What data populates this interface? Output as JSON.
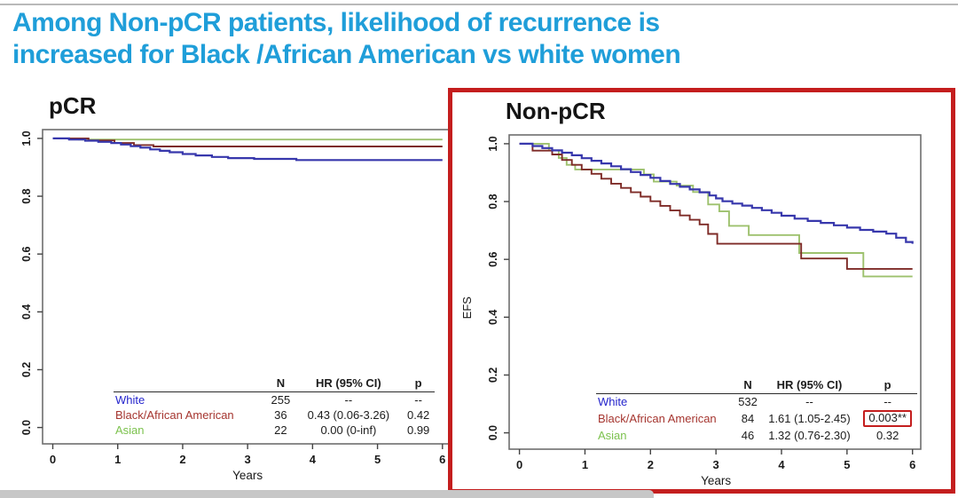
{
  "slide": {
    "title_line1": "Among Non-pCR patients, likelihood of recurrence is",
    "title_line2": "increased for Black /African American vs white women",
    "title_color": "#1f9ed9",
    "highlight_border_color": "#c41e1e"
  },
  "chart_data": [
    {
      "type": "line",
      "variant": "kaplan-meier-step",
      "title": "pCR",
      "xlabel": "Years",
      "ylabel": "",
      "xlim": [
        0,
        6
      ],
      "ylim": [
        0.0,
        1.0
      ],
      "xticks": [
        "0",
        "1",
        "2",
        "3",
        "4",
        "5",
        "6"
      ],
      "yticks": [
        "0.0",
        "0.2",
        "0.4",
        "0.6",
        "0.8",
        "1.0"
      ],
      "grid": false,
      "highlighted": false,
      "series": [
        {
          "name": "Asian",
          "color": "#9dc16d",
          "points": [
            [
              0,
              1
            ],
            [
              0.4,
              0.996
            ],
            [
              6,
              0.996
            ]
          ]
        },
        {
          "name": "Black/African American",
          "color": "#7e2b27",
          "points": [
            [
              0,
              1
            ],
            [
              0.55,
              0.993
            ],
            [
              0.95,
              0.984
            ],
            [
              1.25,
              0.977
            ],
            [
              1.55,
              0.972
            ],
            [
              6,
              0.972
            ]
          ]
        },
        {
          "name": "White",
          "color": "#3737ac",
          "points": [
            [
              0,
              1
            ],
            [
              0.25,
              0.996
            ],
            [
              0.5,
              0.992
            ],
            [
              0.7,
              0.988
            ],
            [
              0.9,
              0.984
            ],
            [
              1.05,
              0.979
            ],
            [
              1.2,
              0.973
            ],
            [
              1.35,
              0.968
            ],
            [
              1.5,
              0.962
            ],
            [
              1.65,
              0.957
            ],
            [
              1.8,
              0.952
            ],
            [
              2.0,
              0.946
            ],
            [
              2.2,
              0.941
            ],
            [
              2.45,
              0.936
            ],
            [
              2.7,
              0.932
            ],
            [
              3.1,
              0.929
            ],
            [
              3.75,
              0.925
            ],
            [
              6,
              0.925
            ]
          ]
        }
      ],
      "legend_table": {
        "headers": [
          "N",
          "HR (95% CI)",
          "p"
        ],
        "rows": [
          {
            "label": "White",
            "label_color": "#2424cc",
            "n": "255",
            "hr": "--",
            "p": "--",
            "p_highlight": false
          },
          {
            "label": "Black/African American",
            "label_color": "#a5352f",
            "n": "36",
            "hr": "0.43 (0.06-3.26)",
            "p": "0.42",
            "p_highlight": false
          },
          {
            "label": "Asian",
            "label_color": "#7cc24e",
            "n": "22",
            "hr": "0.00 (0-inf)",
            "p": "0.99",
            "p_highlight": false
          }
        ]
      }
    },
    {
      "type": "line",
      "variant": "kaplan-meier-step",
      "title": "Non-pCR",
      "xlabel": "Years",
      "ylabel": "EFS",
      "xlim": [
        0,
        6
      ],
      "ylim": [
        0.0,
        1.0
      ],
      "xticks": [
        "0",
        "1",
        "2",
        "3",
        "4",
        "5",
        "6"
      ],
      "yticks": [
        "0.0",
        "0.2",
        "0.4",
        "0.6",
        "0.8",
        "1.0"
      ],
      "grid": false,
      "highlighted": true,
      "series": [
        {
          "name": "Asian",
          "color": "#9dc16d",
          "points": [
            [
              0,
              1
            ],
            [
              0.45,
              0.977
            ],
            [
              0.6,
              0.951
            ],
            [
              0.72,
              0.927
            ],
            [
              0.85,
              0.911
            ],
            [
              1.9,
              0.894
            ],
            [
              2.05,
              0.869
            ],
            [
              2.4,
              0.855
            ],
            [
              2.65,
              0.833
            ],
            [
              2.88,
              0.79
            ],
            [
              3.05,
              0.766
            ],
            [
              3.2,
              0.716
            ],
            [
              3.5,
              0.684
            ],
            [
              4.27,
              0.622
            ],
            [
              5.25,
              0.541
            ],
            [
              6,
              0.541
            ]
          ]
        },
        {
          "name": "Black/African American",
          "color": "#7e2b27",
          "points": [
            [
              0,
              1
            ],
            [
              0.2,
              0.976
            ],
            [
              0.5,
              0.963
            ],
            [
              0.65,
              0.944
            ],
            [
              0.8,
              0.927
            ],
            [
              0.95,
              0.911
            ],
            [
              1.1,
              0.896
            ],
            [
              1.25,
              0.879
            ],
            [
              1.4,
              0.862
            ],
            [
              1.55,
              0.847
            ],
            [
              1.7,
              0.832
            ],
            [
              1.85,
              0.817
            ],
            [
              2.0,
              0.801
            ],
            [
              2.15,
              0.785
            ],
            [
              2.3,
              0.769
            ],
            [
              2.45,
              0.752
            ],
            [
              2.6,
              0.737
            ],
            [
              2.75,
              0.721
            ],
            [
              2.88,
              0.688
            ],
            [
              3.02,
              0.654
            ],
            [
              4.3,
              0.603
            ],
            [
              5.0,
              0.567
            ],
            [
              6,
              0.567
            ]
          ]
        },
        {
          "name": "White",
          "color": "#3737ac",
          "points": [
            [
              0,
              1
            ],
            [
              0.2,
              0.992
            ],
            [
              0.35,
              0.985
            ],
            [
              0.5,
              0.977
            ],
            [
              0.65,
              0.969
            ],
            [
              0.8,
              0.96
            ],
            [
              0.95,
              0.95
            ],
            [
              1.1,
              0.941
            ],
            [
              1.25,
              0.932
            ],
            [
              1.4,
              0.922
            ],
            [
              1.55,
              0.912
            ],
            [
              1.7,
              0.902
            ],
            [
              1.85,
              0.892
            ],
            [
              2.0,
              0.882
            ],
            [
              2.15,
              0.871
            ],
            [
              2.3,
              0.861
            ],
            [
              2.45,
              0.851
            ],
            [
              2.6,
              0.842
            ],
            [
              2.75,
              0.832
            ],
            [
              2.9,
              0.821
            ],
            [
              3.0,
              0.811
            ],
            [
              3.1,
              0.801
            ],
            [
              3.25,
              0.793
            ],
            [
              3.4,
              0.786
            ],
            [
              3.55,
              0.778
            ],
            [
              3.7,
              0.77
            ],
            [
              3.85,
              0.761
            ],
            [
              4.0,
              0.751
            ],
            [
              4.2,
              0.741
            ],
            [
              4.4,
              0.733
            ],
            [
              4.6,
              0.726
            ],
            [
              4.8,
              0.718
            ],
            [
              5.0,
              0.71
            ],
            [
              5.2,
              0.702
            ],
            [
              5.4,
              0.696
            ],
            [
              5.6,
              0.689
            ],
            [
              5.75,
              0.675
            ],
            [
              5.9,
              0.66
            ],
            [
              6,
              0.654
            ]
          ]
        }
      ],
      "legend_table": {
        "headers": [
          "N",
          "HR (95% CI)",
          "p"
        ],
        "rows": [
          {
            "label": "White",
            "label_color": "#2424cc",
            "n": "532",
            "hr": "--",
            "p": "--",
            "p_highlight": false
          },
          {
            "label": "Black/African American",
            "label_color": "#a5352f",
            "n": "84",
            "hr": "1.61 (1.05-2.45)",
            "p": "0.003**",
            "p_highlight": true
          },
          {
            "label": "Asian",
            "label_color": "#7cc24e",
            "n": "46",
            "hr": "1.32 (0.76-2.30)",
            "p": "0.32",
            "p_highlight": false
          }
        ]
      }
    }
  ]
}
